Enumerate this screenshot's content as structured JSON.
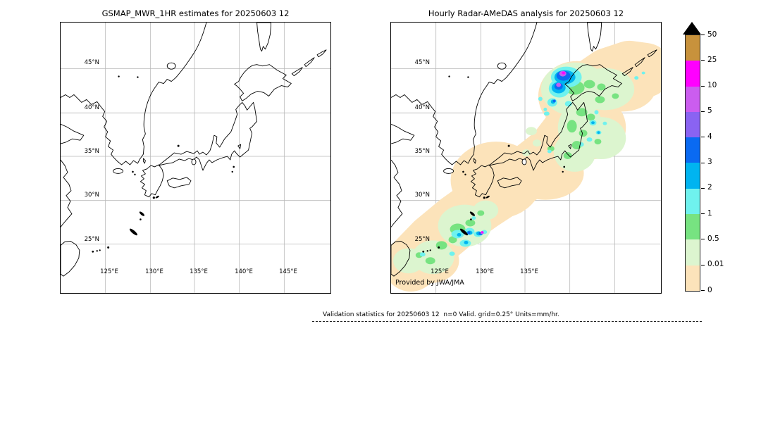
{
  "figure": {
    "left_map": {
      "title": "GSMAP_MWR_1HR estimates for 20250603 12",
      "lat_labels": [
        "45°N",
        "40°N",
        "35°N",
        "30°N",
        "25°N"
      ],
      "lon_labels": [
        "125°E",
        "130°E",
        "135°E",
        "140°E",
        "145°E"
      ]
    },
    "right_map": {
      "title": "Hourly Radar-AMeDAS analysis for 20250603 12",
      "lat_labels": [
        "45°N",
        "40°N",
        "35°N",
        "30°N",
        "25°N"
      ],
      "lon_labels": [
        "125°E",
        "130°E",
        "135°E"
      ],
      "credit": "Provided by JWA/JMA"
    },
    "colorbar": {
      "units": "mm/hr",
      "tick_labels": [
        "50",
        "25",
        "10",
        "5",
        "4",
        "3",
        "2",
        "1",
        "0.5",
        "0.01",
        "0"
      ],
      "segment_colors_top_to_bottom": [
        "#c8923c",
        "#ff00ff",
        "#cb5def",
        "#8a63f2",
        "#0a6af2",
        "#00b4f0",
        "#6ff2ee",
        "#77e381",
        "#dcf5cf",
        "#fce3ba"
      ],
      "overflow_color": "#000000"
    },
    "footer": {
      "validation_text": "Validation statistics for 20250603 12  n=0 Valid. grid=0.25° Units=mm/hr."
    }
  }
}
